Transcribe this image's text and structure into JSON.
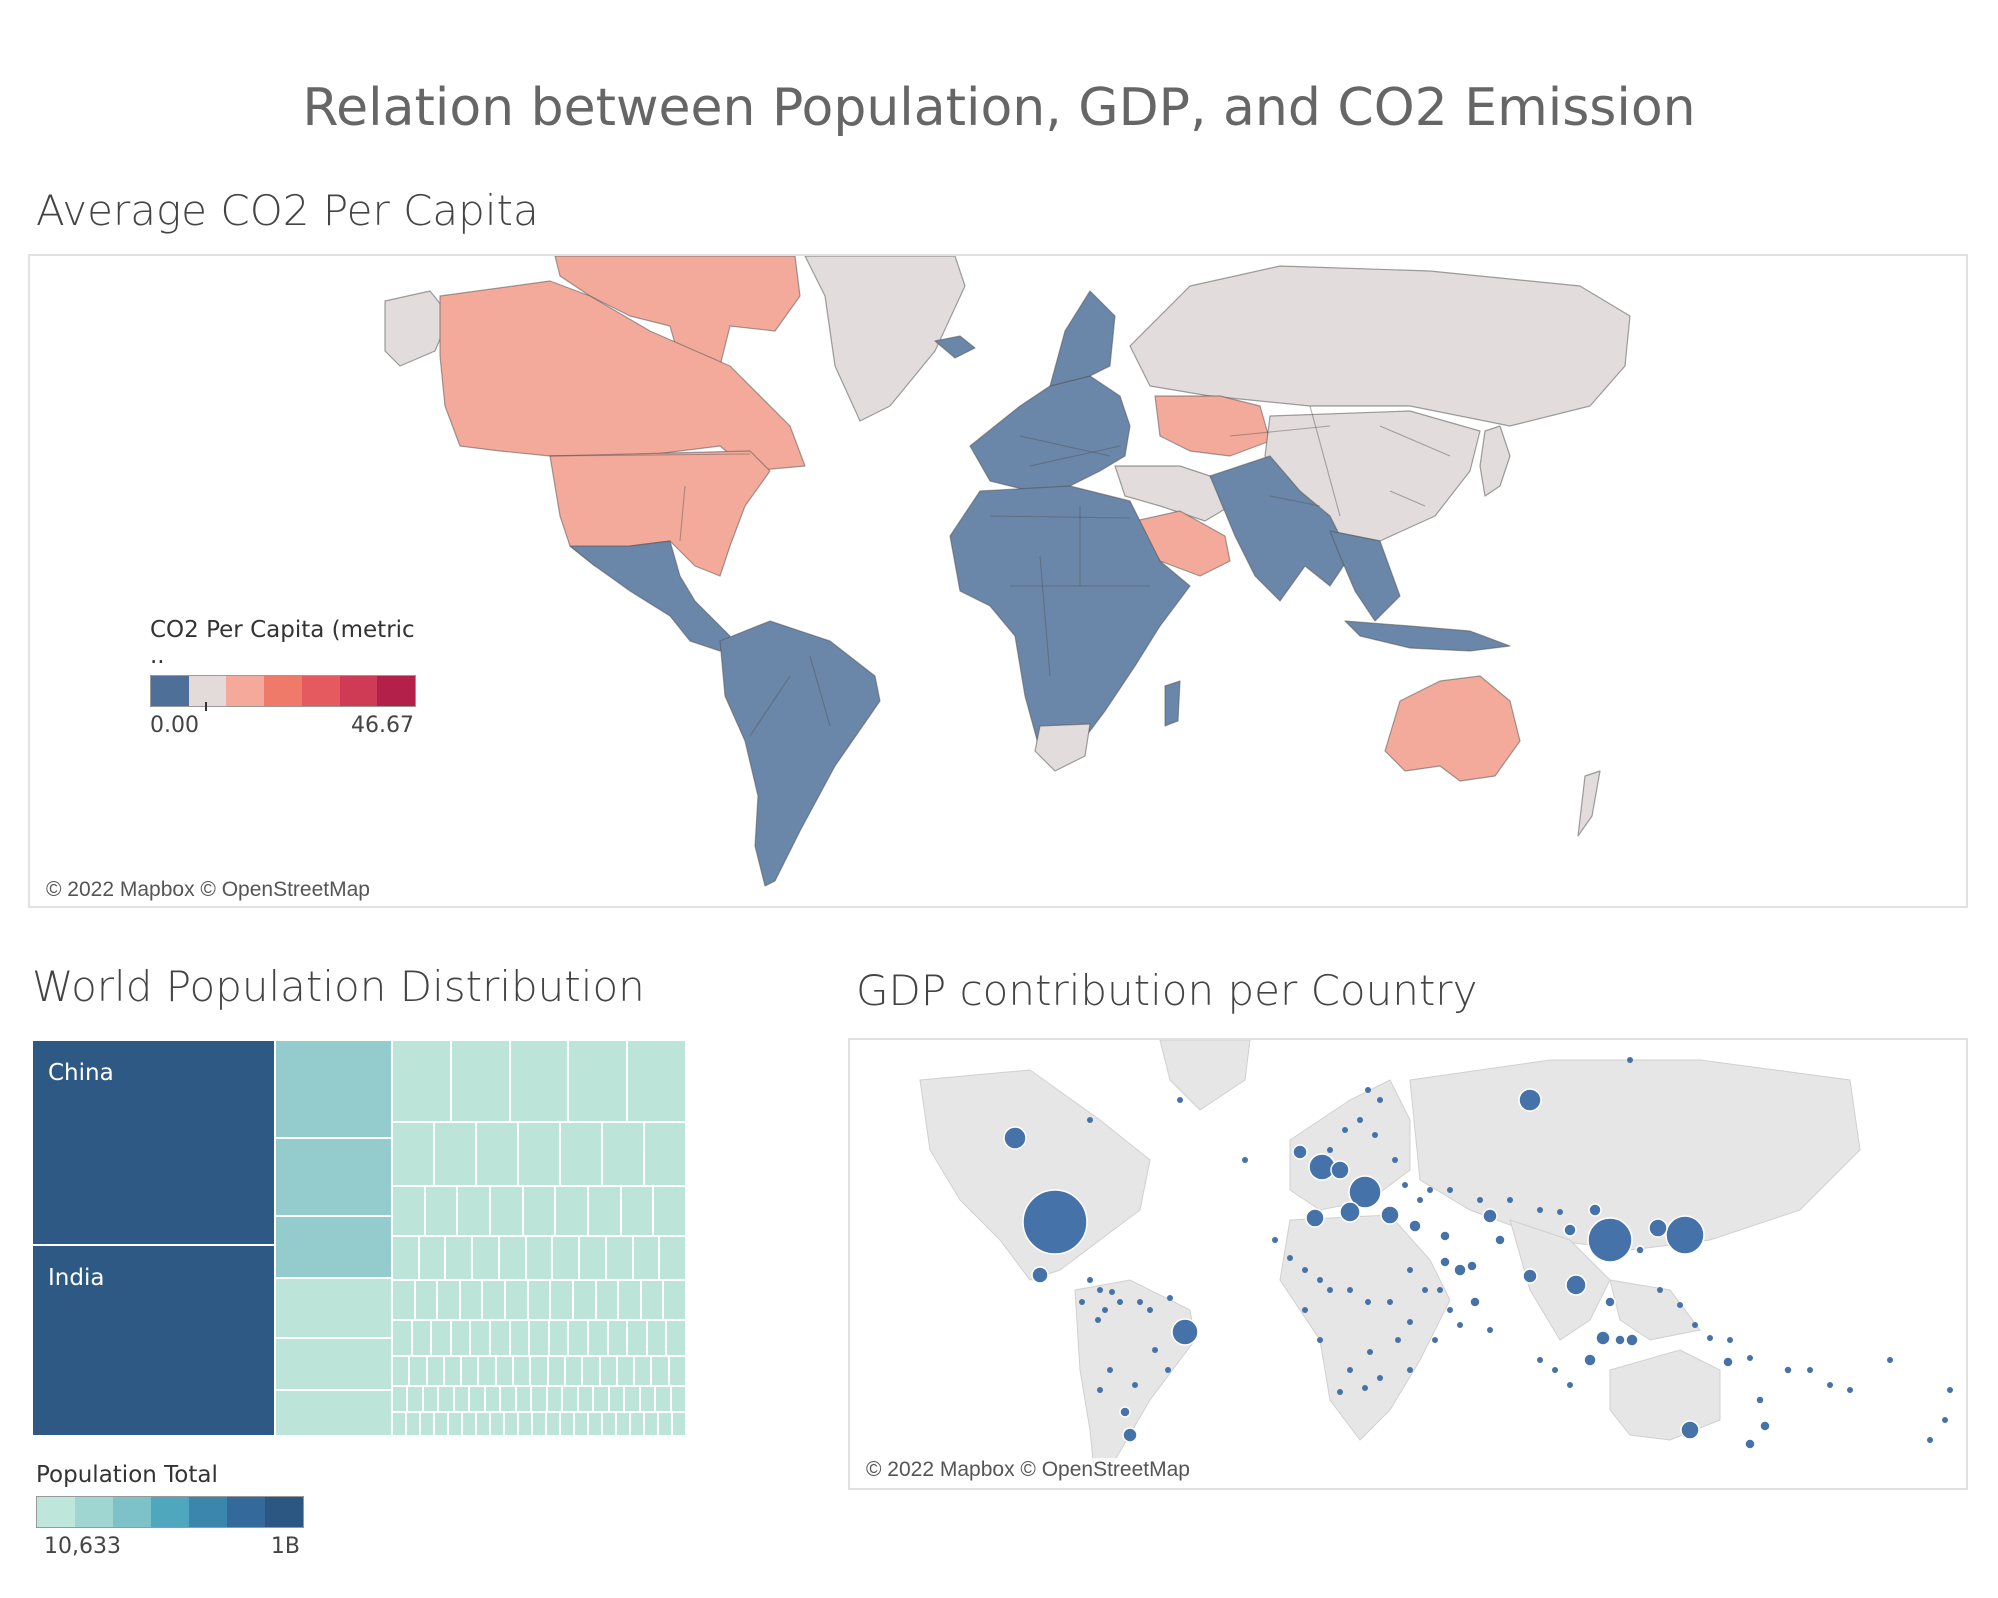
{
  "dashboard": {
    "title": "Relation between Population, GDP, and CO2 Emission"
  },
  "co2_map": {
    "title": "Average CO2 Per Capita",
    "attribution": "© 2022 Mapbox © OpenStreetMap",
    "legend": {
      "title": "CO2 Per Capita (metric ..",
      "min_label": "0.00",
      "max_label": "46.67",
      "colors": [
        "#4e6f98",
        "#e3dbda",
        "#f5a99a",
        "#f07a6a",
        "#e55a5e",
        "#cf3a55",
        "#b3214a"
      ]
    },
    "colors": {
      "low": "#6a86a8",
      "mid": "#e2dcdc",
      "high": "#f4aa9b",
      "border": "#555555"
    }
  },
  "population": {
    "title": "World Population Distribution",
    "legend": {
      "title": "Population Total",
      "min_label": "10,633",
      "max_label": "1B",
      "colors": [
        "#bfe6da",
        "#9fd6d2",
        "#7cc2c8",
        "#4fa7be",
        "#3a86ad",
        "#34699c",
        "#2d5783"
      ]
    },
    "top_labels": [
      "China",
      "India"
    ],
    "colors": {
      "dark": "#2e5984",
      "mid": "#94cbcc",
      "light": "#bce4d9"
    }
  },
  "gdp": {
    "title": "GDP contribution per Country",
    "attribution": "© 2022 Mapbox © OpenStreetMap",
    "colors": {
      "land": "#e6e6e6",
      "bubble": "#4573a9",
      "bubble_stroke": "#ffffff"
    }
  }
}
